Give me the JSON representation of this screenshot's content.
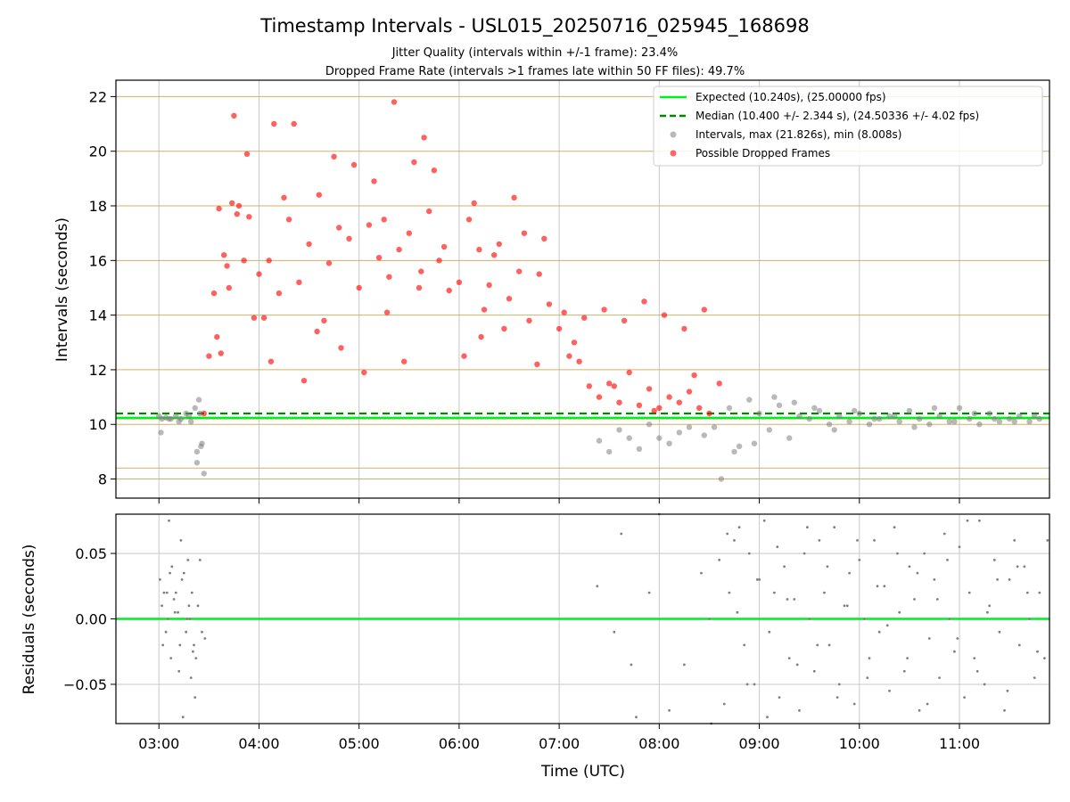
{
  "chart_data": [
    {
      "type": "scatter",
      "title": "Timestamp Intervals - USL015_20250716_025945_168698",
      "subtitles": [
        "Jitter Quality (intervals within +/-1 frame): 23.4%",
        "Dropped Frame Rate (intervals >1 frames late within 50 FF files): 49.7%"
      ],
      "xlabel": "",
      "ylabel": "Intervals (seconds)",
      "xlim_hours": [
        2.57,
        11.9
      ],
      "ylim": [
        7.3,
        22.6
      ],
      "yticks": [
        8,
        10,
        12,
        14,
        16,
        18,
        20,
        22
      ],
      "ytick_labels": [
        "8",
        "10",
        "12",
        "14",
        "16",
        "18",
        "20",
        "22"
      ],
      "xticks_hours": [
        3,
        4,
        5,
        6,
        7,
        8,
        9,
        10,
        11
      ],
      "frame_gridlines_y": [
        8.0,
        8.4,
        10.0,
        10.2,
        12.0,
        14.0,
        16.0,
        18.0,
        20.0,
        22.0
      ],
      "grid": true,
      "legend_placement": "top-right",
      "legend": [
        {
          "label": "Expected (10.240s), (25.00000 fps)",
          "kind": "line"
        },
        {
          "label": "Median (10.400 +/- 2.344 s), (24.50336 +/- 4.02 fps)",
          "kind": "dashed"
        },
        {
          "label": "Intervals, max (21.826s), min (8.008s)",
          "kind": "dot"
        },
        {
          "label": "Possible Dropped Frames",
          "kind": "dot"
        }
      ],
      "expected_interval": 10.24,
      "median_interval": 10.4,
      "max_interval": 21.826,
      "min_interval": 8.008,
      "series": [
        {
          "name": "Intervals, max (21.826s), min (8.008s)",
          "color": "#808080",
          "points_x_hours": [
            3.0,
            3.03,
            3.07,
            3.12,
            3.17,
            3.22,
            3.27,
            3.32,
            3.36,
            3.4,
            3.42,
            3.45,
            3.02,
            3.1,
            3.2,
            3.3,
            3.38,
            3.43,
            3.38,
            3.41,
            7.4,
            7.5,
            7.6,
            7.7,
            7.8,
            7.9,
            8.0,
            8.1,
            8.2,
            8.3,
            8.45,
            8.55,
            8.62,
            8.7,
            8.8,
            8.9,
            9.0,
            9.1,
            9.2,
            9.3,
            9.4,
            9.5,
            9.6,
            9.7,
            9.8,
            9.9,
            10.0,
            10.1,
            10.2,
            10.3,
            10.4,
            10.5,
            10.6,
            10.7,
            10.8,
            10.9,
            11.0,
            11.1,
            11.2,
            11.3,
            11.4,
            11.5,
            11.6,
            11.7,
            11.8,
            8.75,
            8.95,
            9.15,
            9.35,
            9.55,
            9.75,
            9.95,
            10.15,
            10.35,
            10.55,
            10.75,
            10.95,
            11.15,
            11.35,
            11.55,
            11.75
          ],
          "points_y": [
            10.3,
            10.2,
            10.25,
            10.2,
            10.3,
            10.2,
            10.4,
            10.1,
            10.6,
            10.9,
            9.2,
            8.2,
            9.7,
            10.2,
            10.1,
            10.3,
            9.0,
            9.3,
            8.6,
            10.4,
            9.4,
            9.0,
            9.8,
            9.5,
            9.1,
            10.0,
            9.5,
            9.3,
            9.7,
            9.9,
            9.6,
            9.9,
            8.0,
            10.6,
            9.2,
            10.9,
            10.4,
            9.8,
            10.7,
            9.5,
            10.3,
            10.2,
            10.5,
            10.0,
            10.3,
            10.1,
            10.4,
            10.0,
            10.2,
            10.3,
            10.1,
            10.5,
            10.2,
            10.0,
            10.3,
            10.1,
            10.6,
            10.2,
            10.0,
            10.4,
            10.1,
            10.2,
            10.3,
            10.1,
            10.2,
            9.0,
            9.3,
            11.0,
            10.8,
            10.6,
            9.8,
            10.5,
            10.2,
            10.3,
            9.9,
            10.6,
            10.1,
            10.4,
            10.2,
            10.1,
            10.3
          ]
        },
        {
          "name": "Possible Dropped Frames",
          "color": "#ff0000",
          "points_x_hours": [
            3.45,
            3.5,
            3.55,
            3.6,
            3.65,
            3.7,
            3.75,
            3.8,
            3.85,
            3.9,
            3.95,
            4.0,
            4.1,
            4.2,
            4.3,
            4.4,
            4.5,
            4.6,
            4.7,
            4.8,
            4.9,
            5.0,
            5.1,
            5.2,
            5.3,
            5.4,
            5.5,
            5.6,
            5.7,
            5.8,
            5.9,
            6.0,
            6.1,
            6.2,
            6.3,
            6.4,
            6.5,
            6.6,
            6.7,
            6.8,
            6.9,
            7.0,
            7.1,
            7.2,
            7.3,
            7.4,
            7.5,
            7.6,
            7.7,
            7.8,
            7.9,
            8.0,
            8.1,
            8.2,
            8.3,
            8.4,
            8.5,
            8.6,
            3.73,
            3.88,
            4.15,
            4.25,
            4.35,
            4.65,
            4.95,
            5.15,
            5.35,
            5.55,
            5.65,
            5.75,
            6.15,
            6.35,
            6.55,
            3.58,
            3.68,
            3.78,
            4.05,
            4.45,
            4.75,
            5.05,
            5.25,
            5.45,
            5.85,
            6.05,
            6.25,
            6.45,
            6.65,
            6.85,
            7.05,
            7.25,
            7.45,
            7.65,
            7.85,
            8.05,
            8.25,
            8.45,
            3.62,
            4.12,
            4.58,
            4.82,
            5.28,
            5.62,
            6.22,
            6.78,
            7.15,
            7.55,
            7.95,
            8.35
          ],
          "points_y": [
            10.4,
            12.5,
            14.8,
            17.9,
            16.2,
            15.0,
            21.3,
            18.0,
            16.0,
            17.6,
            13.9,
            15.5,
            16.0,
            14.8,
            17.5,
            15.2,
            16.6,
            18.4,
            15.9,
            17.2,
            16.8,
            15.0,
            17.3,
            16.1,
            15.4,
            16.4,
            17.0,
            15.0,
            17.8,
            16.0,
            14.9,
            15.2,
            17.5,
            16.4,
            15.1,
            16.6,
            14.6,
            15.6,
            13.8,
            15.5,
            14.4,
            13.5,
            12.5,
            12.3,
            11.4,
            11.0,
            11.5,
            10.8,
            11.9,
            10.7,
            11.3,
            10.6,
            11.0,
            10.8,
            11.2,
            10.6,
            10.4,
            11.5,
            18.1,
            19.9,
            21.0,
            18.3,
            21.0,
            13.8,
            19.5,
            18.9,
            21.8,
            19.6,
            20.5,
            19.3,
            18.1,
            16.2,
            18.3,
            13.2,
            15.8,
            17.7,
            13.9,
            11.6,
            19.8,
            11.9,
            17.5,
            12.3,
            16.5,
            12.5,
            14.2,
            13.5,
            17.0,
            16.8,
            14.1,
            13.9,
            14.2,
            13.8,
            14.5,
            14.0,
            13.5,
            14.2,
            12.6,
            12.3,
            13.4,
            12.8,
            14.1,
            15.6,
            13.2,
            12.2,
            13.0,
            11.4,
            10.5,
            11.8
          ]
        }
      ]
    },
    {
      "type": "scatter",
      "xlabel": "Time (UTC)",
      "ylabel": "Residuals (seconds)",
      "xlim_hours": [
        2.57,
        11.9
      ],
      "ylim": [
        -0.08,
        0.08
      ],
      "yticks": [
        0.05,
        0.0,
        -0.05
      ],
      "ytick_labels": [
        "0.05",
        "0.00",
        "−0.05"
      ],
      "xticks_hours": [
        3,
        4,
        5,
        6,
        7,
        8,
        9,
        10,
        11
      ],
      "xtick_labels": [
        "03:00",
        "04:00",
        "05:00",
        "06:00",
        "07:00",
        "08:00",
        "09:00",
        "10:00",
        "11:00"
      ],
      "grid": true,
      "zero_line": 0.0,
      "series": [
        {
          "color": "#808080",
          "points_x_hours": [
            3.01,
            3.03,
            3.05,
            3.07,
            3.09,
            3.11,
            3.13,
            3.15,
            3.17,
            3.19,
            3.21,
            3.23,
            3.25,
            3.27,
            3.29,
            3.31,
            3.33,
            3.35,
            3.37,
            3.39,
            3.41,
            3.43,
            3.46,
            3.04,
            3.08,
            3.12,
            3.16,
            3.2,
            3.24,
            3.28,
            3.32,
            3.36,
            3.1,
            3.22,
            3.3,
            3.34,
            7.38,
            7.55,
            7.62,
            7.72,
            7.77,
            7.9,
            8.0,
            8.1,
            8.25,
            8.42,
            8.5,
            8.52,
            8.6,
            8.65,
            8.7,
            8.75,
            8.8,
            8.85,
            8.9,
            8.95,
            9.0,
            9.05,
            9.1,
            9.15,
            9.2,
            9.25,
            9.3,
            9.35,
            9.4,
            9.45,
            9.5,
            9.55,
            9.6,
            9.65,
            9.7,
            9.75,
            9.8,
            9.85,
            9.9,
            9.95,
            10.0,
            10.05,
            10.1,
            10.15,
            10.2,
            10.25,
            10.3,
            10.35,
            10.4,
            10.45,
            10.5,
            10.55,
            10.6,
            10.65,
            10.7,
            10.75,
            10.8,
            10.85,
            10.9,
            10.95,
            11.0,
            11.05,
            11.1,
            11.15,
            11.2,
            11.25,
            11.3,
            11.35,
            11.4,
            11.45,
            11.5,
            11.55,
            11.6,
            11.65,
            11.7,
            11.75,
            11.8,
            11.85,
            8.68,
            8.78,
            8.88,
            8.98,
            9.08,
            9.18,
            9.28,
            9.38,
            9.48,
            9.58,
            9.68,
            9.78,
            9.88,
            9.98,
            10.08,
            10.18,
            10.28,
            10.38,
            10.48,
            10.58,
            10.68,
            10.78,
            10.88,
            10.98,
            11.08,
            11.18,
            11.28,
            11.38,
            11.48,
            11.58,
            11.68,
            11.78,
            11.88
          ],
          "points_y": [
            0.03,
            0.01,
            0.02,
            -0.01,
            0.0,
            0.035,
            0.04,
            0.015,
            0.02,
            0.005,
            -0.02,
            0.03,
            0.035,
            -0.01,
            0.045,
            0.0,
            0.02,
            -0.02,
            -0.03,
            0.01,
            0.045,
            -0.01,
            -0.015,
            -0.02,
            0.02,
            -0.03,
            0.005,
            -0.04,
            -0.075,
            0.0,
            -0.045,
            -0.06,
            0.075,
            0.06,
            0.01,
            -0.025,
            0.025,
            -0.01,
            0.065,
            -0.035,
            -0.075,
            0.02,
            0.08,
            -0.07,
            -0.035,
            0.035,
            0.0,
            -0.08,
            0.045,
            -0.065,
            0.02,
            0.06,
            0.07,
            -0.02,
            0.05,
            -0.05,
            0.03,
            0.075,
            -0.01,
            0.02,
            -0.06,
            0.04,
            -0.03,
            0.015,
            -0.07,
            0.05,
            0.0,
            -0.04,
            0.06,
            0.02,
            -0.02,
            0.07,
            -0.05,
            0.01,
            0.035,
            -0.065,
            0.045,
            0.0,
            -0.03,
            0.06,
            -0.01,
            0.025,
            -0.055,
            0.07,
            0.005,
            -0.04,
            0.04,
            0.015,
            -0.07,
            0.05,
            -0.015,
            0.03,
            -0.045,
            0.065,
            0.0,
            -0.025,
            0.055,
            -0.06,
            0.02,
            -0.03,
            0.075,
            -0.05,
            0.01,
            0.045,
            -0.01,
            -0.07,
            0.03,
            0.06,
            -0.02,
            0.04,
            0.0,
            -0.045,
            0.02,
            -0.03,
            0.065,
            0.005,
            -0.05,
            0.03,
            -0.075,
            0.055,
            0.015,
            -0.035,
            0.07,
            -0.02,
            0.04,
            -0.06,
            0.01,
            0.06,
            -0.045,
            0.025,
            -0.005,
            0.05,
            -0.03,
            0.035,
            -0.065,
            0.015,
            0.045,
            -0.015,
            0.075,
            -0.04,
            0.005,
            0.03,
            -0.055,
            0.04,
            0.02,
            -0.025,
            0.06
          ]
        }
      ]
    }
  ],
  "colors": {
    "expected_line": "#00ee22",
    "median_line": "#008800",
    "intervals_dot": "#808080",
    "dropped_dot": "#ff0000",
    "frame_grid": "#d2b06a",
    "grid": "#c8c8c8"
  }
}
